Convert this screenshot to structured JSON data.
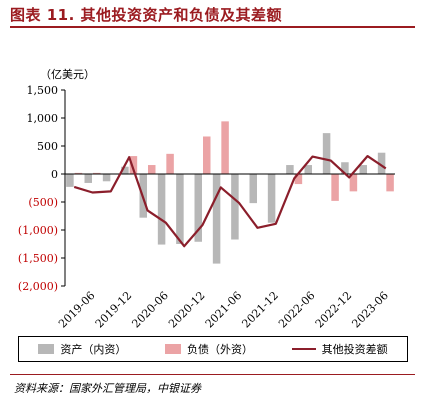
{
  "title": "图表 11. 其他投资资产和负债及其差额",
  "unit": "（亿美元）",
  "source": "资料来源：国家外汇管理局，中银证券",
  "colors": {
    "asset": "#b7b7b7",
    "liability": "#eba3a5",
    "net": "#8b1e2b",
    "title": "#9b1b20"
  },
  "chart_data": {
    "type": "bar",
    "title": "图表 11. 其他投资资产和负债及其差额",
    "ylabel": "（亿美元）",
    "ylim": [
      -2000,
      1500
    ],
    "yticks": [
      1500,
      1000,
      500,
      0,
      -500,
      -1000,
      -1500,
      -2000
    ],
    "ytick_labels": [
      "1,500",
      "1,000",
      "500",
      "0",
      "(500)",
      "(1,000)",
      "(1,500)",
      "(2,000)"
    ],
    "categories": [
      "2019-03",
      "2019-06",
      "2019-09",
      "2019-12",
      "2020-03",
      "2020-06",
      "2020-09",
      "2020-12",
      "2021-03",
      "2021-06",
      "2021-09",
      "2021-12",
      "2022-03",
      "2022-06",
      "2022-09",
      "2022-12",
      "2023-03",
      "2023-06"
    ],
    "x_tick_labels": [
      "2019-06",
      "2019-12",
      "2020-06",
      "2020-12",
      "2021-06",
      "2021-12",
      "2022-06",
      "2022-12",
      "2023-06"
    ],
    "series": [
      {
        "name": "资产（内资）",
        "kind": "bar",
        "values": [
          -230,
          -160,
          -130,
          130,
          -780,
          -1260,
          -1250,
          -1210,
          -1600,
          -1170,
          -520,
          -870,
          160,
          160,
          730,
          210,
          160,
          380
        ]
      },
      {
        "name": "负债（外资）",
        "kind": "bar",
        "values": [
          20,
          20,
          0,
          320,
          160,
          360,
          0,
          670,
          940,
          0,
          0,
          0,
          -180,
          0,
          -480,
          -310,
          0,
          -310
        ]
      },
      {
        "name": "其他投资差额",
        "kind": "line",
        "values": [
          -230,
          -330,
          -310,
          300,
          -650,
          -870,
          -1290,
          -910,
          -240,
          -520,
          -960,
          -890,
          -80,
          310,
          240,
          -60,
          320,
          100
        ]
      }
    ],
    "legend_position": "bottom",
    "grid": false
  }
}
